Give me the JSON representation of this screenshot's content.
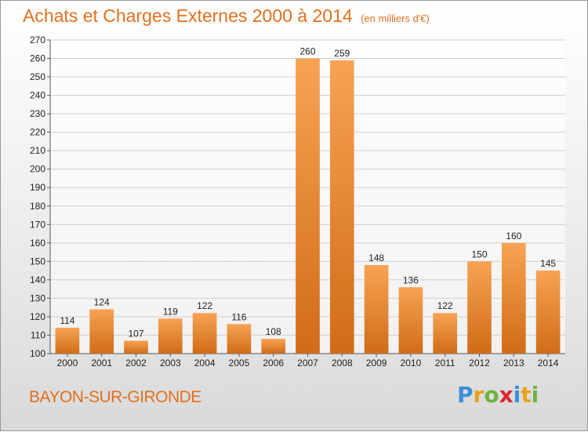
{
  "title": "Achats et Charges Externes 2000 à 2014",
  "subtitle": "(en milliers d'€)",
  "commune": "BAYON-SUR-GIRONDE",
  "logo": {
    "letters": [
      {
        "ch": "P",
        "color": "#3a8fd6"
      },
      {
        "ch": "r",
        "color": "#e8a21a"
      },
      {
        "ch": "o",
        "color": "#6cb33f"
      },
      {
        "ch": "x",
        "color": "#d8262e"
      },
      {
        "ch": "i",
        "color": "#3a8fd6"
      },
      {
        "ch": "t",
        "color": "#e8a21a"
      },
      {
        "ch": "i",
        "color": "#6cb33f"
      }
    ]
  },
  "colors": {
    "bar_light": "#f7a354",
    "bar_dark": "#d06c16",
    "title": "#e2701e",
    "grid": "#cfcfcf"
  },
  "chart_data": {
    "type": "bar",
    "categories": [
      "2000",
      "2001",
      "2002",
      "2003",
      "2004",
      "2005",
      "2006",
      "2007",
      "2008",
      "2009",
      "2010",
      "2011",
      "2012",
      "2013",
      "2014"
    ],
    "values": [
      114,
      124,
      107,
      119,
      122,
      116,
      108,
      260,
      259,
      148,
      136,
      122,
      150,
      160,
      145
    ],
    "ylim": [
      100,
      270
    ],
    "ytick_step": 10,
    "grid": true,
    "xlabel": "",
    "ylabel": ""
  }
}
